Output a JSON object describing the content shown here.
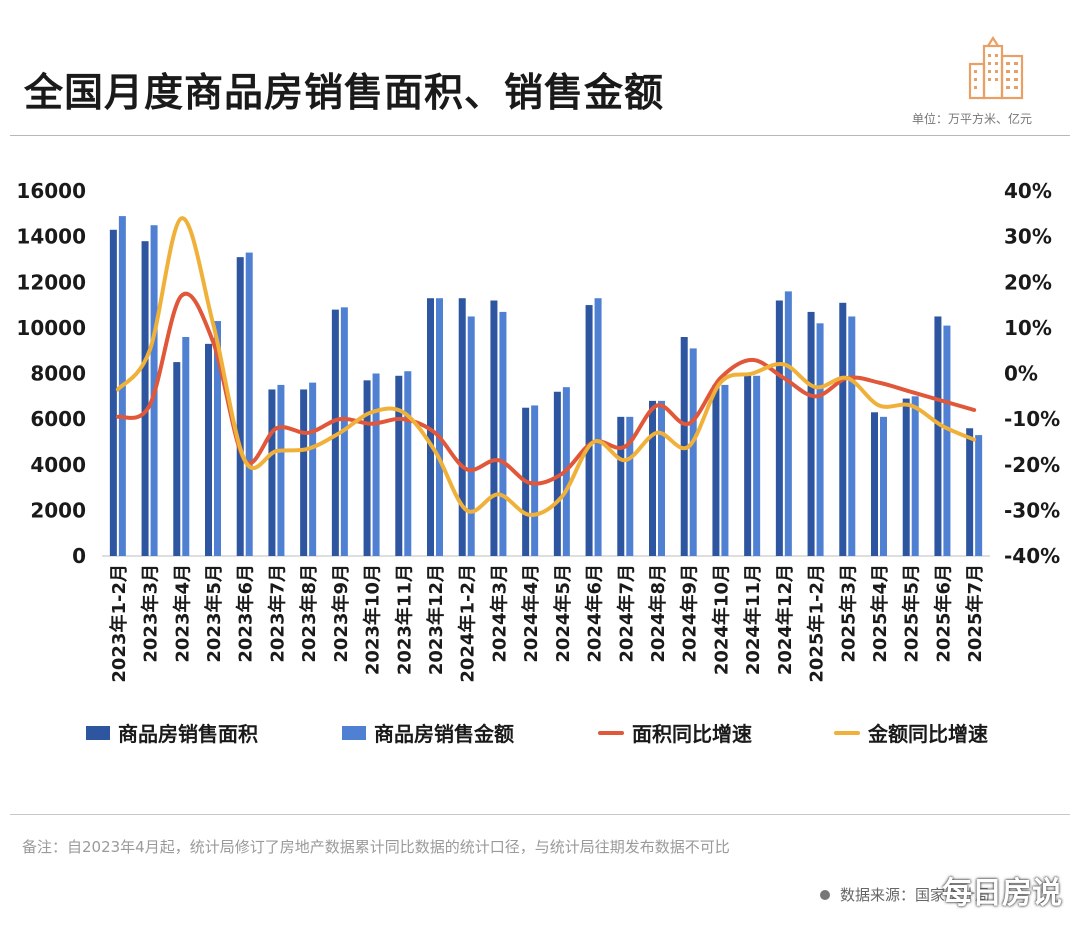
{
  "header": {
    "title": "全国月度商品房销售面积、销售金额",
    "unit": "单位：万平方米、亿元"
  },
  "colors": {
    "area_bar": "#2d55a0",
    "amount_bar": "#4f80d2",
    "area_growth_line": "#e0573a",
    "amount_growth_line": "#f0b13a",
    "logo": "#e8a067"
  },
  "chart_data": {
    "type": "bar",
    "categories": [
      "2023年1-2月",
      "2023年3月",
      "2023年4月",
      "2023年5月",
      "2023年6月",
      "2023年7月",
      "2023年8月",
      "2023年9月",
      "2023年10月",
      "2023年11月",
      "2023年12月",
      "2024年1-2月",
      "2024年3月",
      "2024年4月",
      "2024年5月",
      "2024年6月",
      "2024年7月",
      "2024年8月",
      "2024年9月",
      "2024年10月",
      "2024年11月",
      "2024年12月",
      "2025年1-2月",
      "2025年3月",
      "2025年4月",
      "2025年5月",
      "2025年6月",
      "2025年7月"
    ],
    "series": [
      {
        "name": "商品房销售面积",
        "axis": "left",
        "type": "bar",
        "values": [
          14300,
          13800,
          8500,
          9300,
          13100,
          7300,
          7300,
          10800,
          7700,
          7900,
          11300,
          11300,
          11200,
          6500,
          7200,
          11000,
          6100,
          6800,
          9600,
          7500,
          8000,
          11200,
          10700,
          11100,
          6300,
          6900,
          10500,
          5600
        ]
      },
      {
        "name": "商品房销售金额",
        "axis": "left",
        "type": "bar",
        "values": [
          14900,
          14500,
          9600,
          10300,
          13300,
          7500,
          7600,
          10900,
          8000,
          8100,
          11300,
          10500,
          10700,
          6600,
          7400,
          11300,
          6100,
          6800,
          9100,
          7500,
          7900,
          11600,
          10200,
          10500,
          6100,
          7000,
          10100,
          5300
        ]
      },
      {
        "name": "面积同比增速",
        "axis": "right",
        "type": "line",
        "values": [
          -9.5,
          -7,
          17,
          7,
          -19,
          -12,
          -13,
          -10,
          -11,
          -10,
          -13,
          -21,
          -19,
          -24,
          -22,
          -15,
          -16,
          -7,
          -11,
          -1,
          3,
          -1,
          -5,
          -1,
          -2,
          -4,
          -6,
          -8
        ]
      },
      {
        "name": "金额同比增速",
        "axis": "right",
        "type": "line",
        "values": [
          -3.5,
          5,
          34,
          11,
          -19,
          -17,
          -16.5,
          -13,
          -8.5,
          -8.5,
          -17,
          -30,
          -26.5,
          -31,
          -27,
          -15,
          -19,
          -13,
          -16,
          -2,
          0,
          2,
          -3,
          -1,
          -7,
          -7,
          -11.5,
          -14.5
        ]
      }
    ],
    "left_axis": {
      "ylim": [
        0,
        16000
      ],
      "ticks": [
        "0",
        "2000",
        "4000",
        "6000",
        "8000",
        "10000",
        "12000",
        "14000",
        "16000"
      ]
    },
    "right_axis": {
      "ylim": [
        -40,
        40
      ],
      "ticks": [
        "-40%",
        "-30%",
        "-20%",
        "-10%",
        "0%",
        "10%",
        "20%",
        "30%",
        "40%"
      ]
    },
    "grid": false,
    "legend_position": "bottom"
  },
  "legend": {
    "items": [
      "商品房销售面积",
      "商品房销售金额",
      "面积同比增速",
      "金额同比增速"
    ]
  },
  "footer": {
    "note": "备注：自2023年4月起，统计局修订了房地产数据累计同比数据的统计口径，与统计局往期发布数据不可比",
    "source": "数据来源：国家统计局",
    "brand": "每日房说"
  }
}
